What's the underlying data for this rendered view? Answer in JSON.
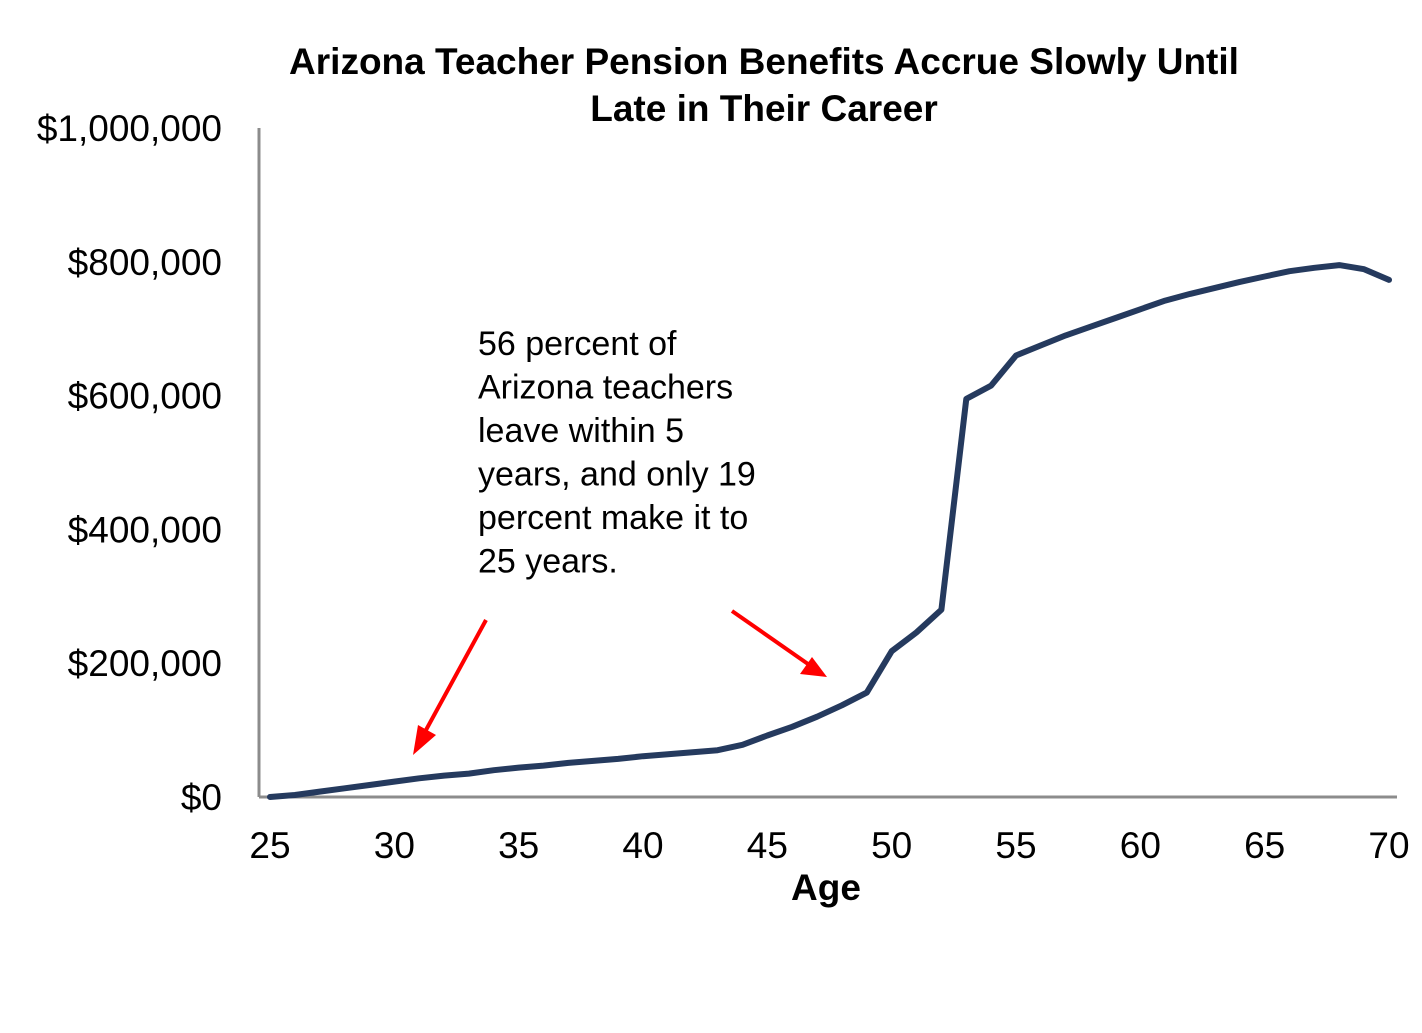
{
  "chart_data": {
    "type": "line",
    "title_lines": [
      "Arizona Teacher Pension Benefits Accrue Slowly Until",
      "Late in Their Career"
    ],
    "xlabel": "Age",
    "ylabel": "",
    "xlim": [
      25,
      70
    ],
    "ylim": [
      0,
      1000000
    ],
    "x_ticks": [
      25,
      30,
      35,
      40,
      45,
      50,
      55,
      60,
      65,
      70
    ],
    "x_tick_labels": [
      "25",
      "30",
      "35",
      "40",
      "45",
      "50",
      "55",
      "60",
      "65",
      "70"
    ],
    "y_ticks": [
      0,
      200000,
      400000,
      600000,
      800000,
      1000000
    ],
    "y_tick_labels": [
      "$0",
      "$200,000",
      "$400,000",
      "$600,000",
      "$800,000",
      "$1,000,000"
    ],
    "grid": false,
    "series": [
      {
        "color": "#253a5e",
        "x": [
          25,
          26,
          27,
          28,
          29,
          30,
          31,
          32,
          33,
          34,
          35,
          36,
          37,
          38,
          39,
          40,
          41,
          42,
          43,
          44,
          45,
          46,
          47,
          48,
          49,
          50,
          51,
          52,
          53,
          54,
          55,
          56,
          57,
          58,
          59,
          60,
          61,
          62,
          63,
          64,
          65,
          66,
          67,
          68,
          69,
          70
        ],
        "y": [
          0,
          3000,
          8000,
          13000,
          18000,
          23000,
          28000,
          32000,
          35000,
          40000,
          44000,
          47000,
          51000,
          54000,
          57000,
          61000,
          64000,
          67000,
          70000,
          78000,
          92000,
          105000,
          120000,
          137000,
          156000,
          218000,
          246000,
          280000,
          595000,
          615000,
          660000,
          675000,
          690000,
          703000,
          716000,
          729000,
          742000,
          752000,
          761000,
          770000,
          778000,
          786000,
          791000,
          795000,
          789000,
          773000
        ]
      }
    ],
    "annotation": {
      "lines": [
        "56 percent of",
        "Arizona teachers",
        "leave within 5",
        "years, and only 19",
        "percent make it to",
        "25 years."
      ],
      "arrow_color": "#ff0000"
    }
  }
}
